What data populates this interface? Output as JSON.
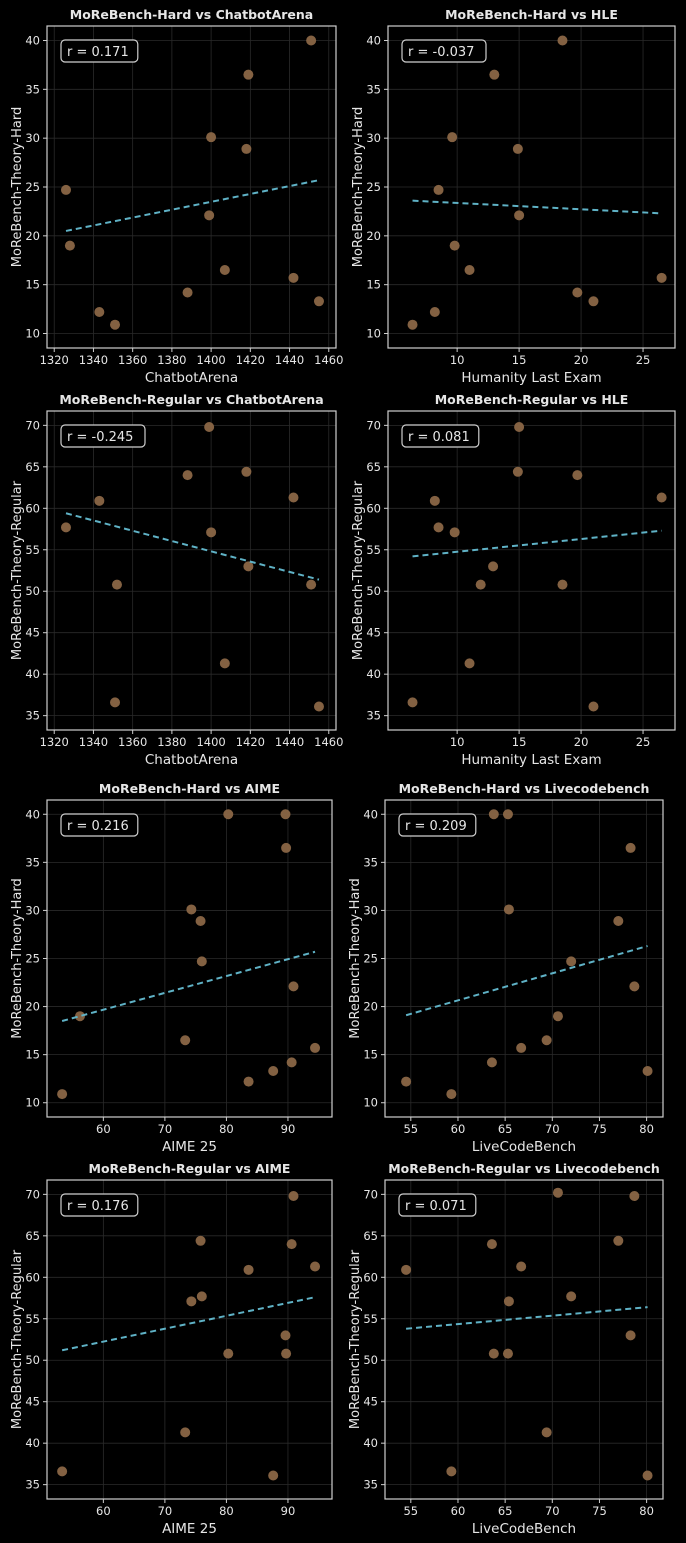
{
  "colors": {
    "background": "#000000",
    "point": "#8a6646",
    "trend": "#5fb2c6",
    "axis": "#cfcfcf",
    "grid": "#2a2a2a",
    "text": "#e6e6e6"
  },
  "chart_data": [
    {
      "type": "scatter",
      "title": "MoReBench-Hard vs ChatbotArena",
      "xlabel": "ChatbotArena",
      "ylabel": "MoReBench-Theory-Hard",
      "r_label": "r = 0.171",
      "xlim": [
        1320,
        1460
      ],
      "ylim": [
        10,
        40
      ],
      "xticks": [
        1320,
        1340,
        1360,
        1380,
        1400,
        1420,
        1440,
        1460
      ],
      "yticks": [
        10,
        15,
        20,
        25,
        30,
        35,
        40
      ],
      "points": [
        [
          1326,
          24.7
        ],
        [
          1328,
          19.0
        ],
        [
          1343,
          12.2
        ],
        [
          1351,
          10.9
        ],
        [
          1388,
          14.2
        ],
        [
          1399,
          22.1
        ],
        [
          1400,
          30.1
        ],
        [
          1407,
          16.5
        ],
        [
          1418,
          28.9
        ],
        [
          1419,
          36.5
        ],
        [
          1442,
          15.7
        ],
        [
          1451,
          40.0
        ],
        [
          1455,
          13.3
        ]
      ],
      "trend": [
        [
          1326,
          20.5
        ],
        [
          1455,
          25.7
        ]
      ]
    },
    {
      "type": "scatter",
      "title": "MoReBench-Hard vs HLE",
      "xlabel": "Humanity Last Exam",
      "ylabel": "MoReBench-Theory-Hard",
      "r_label": "r = -0.037",
      "xlim": [
        5,
        27
      ],
      "ylim": [
        10,
        40
      ],
      "xticks": [
        10,
        15,
        20,
        25
      ],
      "yticks": [
        10,
        15,
        20,
        25,
        30,
        35,
        40
      ],
      "points": [
        [
          6.4,
          10.9
        ],
        [
          8.2,
          12.2
        ],
        [
          8.5,
          24.7
        ],
        [
          9.6,
          30.1
        ],
        [
          9.8,
          19.0
        ],
        [
          11.0,
          16.5
        ],
        [
          13.0,
          36.5
        ],
        [
          14.9,
          28.9
        ],
        [
          15.0,
          22.1
        ],
        [
          18.5,
          40.0
        ],
        [
          19.7,
          14.2
        ],
        [
          21.0,
          13.3
        ],
        [
          26.5,
          15.7
        ]
      ],
      "trend": [
        [
          6.4,
          23.6
        ],
        [
          26.5,
          22.3
        ]
      ]
    },
    {
      "type": "scatter",
      "title": "MoReBench-Regular vs ChatbotArena",
      "xlabel": "ChatbotArena",
      "ylabel": "MoReBench-Theory-Regular",
      "r_label": "r = -0.245",
      "xlim": [
        1320,
        1460
      ],
      "ylim": [
        35,
        70
      ],
      "xticks": [
        1320,
        1340,
        1360,
        1380,
        1400,
        1420,
        1440,
        1460
      ],
      "yticks": [
        35,
        40,
        45,
        50,
        55,
        60,
        65,
        70
      ],
      "points": [
        [
          1326,
          57.7
        ],
        [
          1343,
          60.9
        ],
        [
          1351,
          36.6
        ],
        [
          1352,
          50.8
        ],
        [
          1388,
          64.0
        ],
        [
          1399,
          69.8
        ],
        [
          1400,
          57.1
        ],
        [
          1407,
          41.3
        ],
        [
          1418,
          64.4
        ],
        [
          1419,
          53.0
        ],
        [
          1442,
          61.3
        ],
        [
          1451,
          50.8
        ],
        [
          1455,
          36.1
        ]
      ],
      "trend": [
        [
          1326,
          59.4
        ],
        [
          1455,
          51.4
        ]
      ]
    },
    {
      "type": "scatter",
      "title": "MoReBench-Regular vs HLE",
      "xlabel": "Humanity Last Exam",
      "ylabel": "MoReBench-Theory-Regular",
      "r_label": "r = 0.081",
      "xlim": [
        5,
        27
      ],
      "ylim": [
        35,
        70
      ],
      "xticks": [
        10,
        15,
        20,
        25
      ],
      "yticks": [
        35,
        40,
        45,
        50,
        55,
        60,
        65,
        70
      ],
      "points": [
        [
          6.4,
          36.6
        ],
        [
          8.2,
          60.9
        ],
        [
          8.5,
          57.7
        ],
        [
          9.8,
          57.1
        ],
        [
          11.0,
          41.3
        ],
        [
          11.9,
          50.8
        ],
        [
          12.9,
          53.0
        ],
        [
          14.9,
          64.4
        ],
        [
          15.0,
          69.8
        ],
        [
          18.5,
          50.8
        ],
        [
          19.7,
          64.0
        ],
        [
          21.0,
          36.1
        ],
        [
          26.5,
          61.3
        ]
      ],
      "trend": [
        [
          6.4,
          54.2
        ],
        [
          26.5,
          57.3
        ]
      ]
    },
    {
      "type": "scatter",
      "title": "MoReBench-Hard vs AIME",
      "xlabel": "AIME 25",
      "ylabel": "MoReBench-Theory-Hard",
      "r_label": "r = 0.216",
      "xlim": [
        52,
        96
      ],
      "ylim": [
        10,
        40
      ],
      "xticks": [
        60,
        70,
        80,
        90
      ],
      "yticks": [
        10,
        15,
        20,
        25,
        30,
        35,
        40
      ],
      "points": [
        [
          53.3,
          10.9
        ],
        [
          56.2,
          19.0
        ],
        [
          73.3,
          16.5
        ],
        [
          74.3,
          30.1
        ],
        [
          75.8,
          28.9
        ],
        [
          76.0,
          24.7
        ],
        [
          80.3,
          40.0
        ],
        [
          83.6,
          12.2
        ],
        [
          87.6,
          13.3
        ],
        [
          89.6,
          40.0
        ],
        [
          89.7,
          36.5
        ],
        [
          90.6,
          14.2
        ],
        [
          90.9,
          22.1
        ],
        [
          94.4,
          15.7
        ]
      ],
      "trend": [
        [
          53.3,
          18.5
        ],
        [
          94.4,
          25.7
        ]
      ]
    },
    {
      "type": "scatter",
      "title": "MoReBench-Hard vs Livecodebench",
      "xlabel": "LiveCodeBench",
      "ylabel": "MoReBench-Theory-Hard",
      "r_label": "r = 0.209",
      "xlim": [
        53,
        81
      ],
      "ylim": [
        10,
        40
      ],
      "xticks": [
        55,
        60,
        65,
        70,
        75,
        80
      ],
      "yticks": [
        10,
        15,
        20,
        25,
        30,
        35,
        40
      ],
      "points": [
        [
          54.5,
          12.2
        ],
        [
          59.3,
          10.9
        ],
        [
          63.6,
          14.2
        ],
        [
          63.8,
          40.0
        ],
        [
          65.3,
          40.0
        ],
        [
          65.4,
          30.1
        ],
        [
          66.7,
          15.7
        ],
        [
          69.4,
          16.5
        ],
        [
          70.6,
          19.0
        ],
        [
          72.0,
          24.7
        ],
        [
          77.0,
          28.9
        ],
        [
          78.3,
          36.5
        ],
        [
          78.7,
          22.1
        ],
        [
          80.1,
          13.3
        ]
      ],
      "trend": [
        [
          54.5,
          19.1
        ],
        [
          80.1,
          26.3
        ]
      ]
    },
    {
      "type": "scatter",
      "title": "MoReBench-Regular vs AIME",
      "xlabel": "AIME 25",
      "ylabel": "MoReBench-Theory-Regular",
      "r_label": "r = 0.176",
      "xlim": [
        52,
        96
      ],
      "ylim": [
        35,
        70
      ],
      "xticks": [
        60,
        70,
        80,
        90
      ],
      "yticks": [
        35,
        40,
        45,
        50,
        55,
        60,
        65,
        70
      ],
      "points": [
        [
          53.3,
          36.6
        ],
        [
          73.3,
          41.3
        ],
        [
          74.3,
          57.1
        ],
        [
          75.8,
          64.4
        ],
        [
          76.0,
          57.7
        ],
        [
          80.3,
          50.8
        ],
        [
          83.6,
          60.9
        ],
        [
          87.6,
          36.1
        ],
        [
          89.6,
          53.0
        ],
        [
          89.7,
          50.8
        ],
        [
          90.6,
          64.0
        ],
        [
          90.9,
          69.8
        ],
        [
          94.4,
          61.3
        ]
      ],
      "trend": [
        [
          53.3,
          51.2
        ],
        [
          94.4,
          57.6
        ]
      ]
    },
    {
      "type": "scatter",
      "title": "MoReBench-Regular vs Livecodebench",
      "xlabel": "LiveCodeBench",
      "ylabel": "MoReBench-Theory-Regular",
      "r_label": "r = 0.071",
      "xlim": [
        53,
        81
      ],
      "ylim": [
        35,
        70
      ],
      "xticks": [
        55,
        60,
        65,
        70,
        75,
        80
      ],
      "yticks": [
        35,
        40,
        45,
        50,
        55,
        60,
        65,
        70
      ],
      "points": [
        [
          54.5,
          60.9
        ],
        [
          59.3,
          36.6
        ],
        [
          63.6,
          64.0
        ],
        [
          63.8,
          50.8
        ],
        [
          65.3,
          50.8
        ],
        [
          65.4,
          57.1
        ],
        [
          66.7,
          61.3
        ],
        [
          69.4,
          41.3
        ],
        [
          70.6,
          70.2
        ],
        [
          72.0,
          57.7
        ],
        [
          77.0,
          64.4
        ],
        [
          78.3,
          53.0
        ],
        [
          78.7,
          69.8
        ],
        [
          80.1,
          36.1
        ]
      ],
      "trend": [
        [
          54.5,
          53.8
        ],
        [
          80.1,
          56.4
        ]
      ]
    }
  ]
}
